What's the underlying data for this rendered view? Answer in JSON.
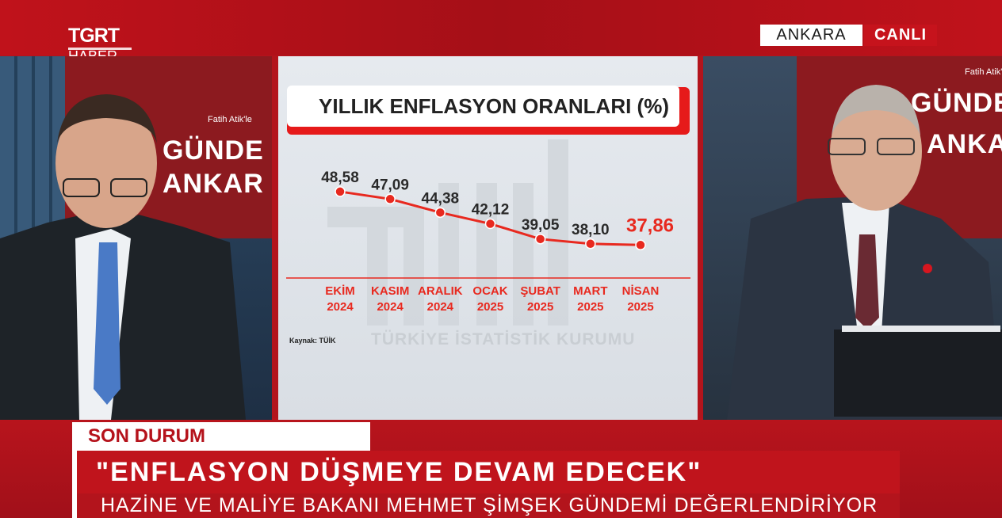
{
  "broadcast": {
    "logo_main": "TGRT",
    "logo_sub": "HABER",
    "location": "ANKARA",
    "live_label": "CANLI"
  },
  "studio": {
    "host_label": "Fatih Atik'le",
    "show_line1": "GÜNDE",
    "show_line2": "ANKAR",
    "show_line1_right": "GÜNDE",
    "show_line2_right": "ANKA"
  },
  "lower_third": {
    "tag": "SON DURUM",
    "headline": "\"ENFLASYON DÜŞMEYE DEVAM EDECEK\"",
    "subline": "HAZİNE VE MALİYE BAKANI MEHMET ŞİMŞEK GÜNDEMİ DEĞERLENDİRİYOR"
  },
  "chart_data": {
    "type": "line",
    "title": "YILLIK ENFLASYON ORANLARI (%)",
    "categories": [
      [
        "EKİM",
        "2024"
      ],
      [
        "KASIM",
        "2024"
      ],
      [
        "ARALIK",
        "2024"
      ],
      [
        "OCAK",
        "2025"
      ],
      [
        "ŞUBAT",
        "2025"
      ],
      [
        "MART",
        "2025"
      ],
      [
        "NİSAN",
        "2025"
      ]
    ],
    "values": [
      48.58,
      47.09,
      44.38,
      42.12,
      39.05,
      38.1,
      37.86
    ],
    "value_labels": [
      "48,58",
      "47,09",
      "44,38",
      "42,12",
      "39,05",
      "38,10",
      "37,86"
    ],
    "highlight_index": 6,
    "source": "Kaynak: TÜİK",
    "agency": "TÜRKİYE İSTATİSTİK KURUMU",
    "colors": {
      "line": "#e8291f",
      "highlight_label": "#e8291f",
      "label": "#2a2a2a"
    }
  }
}
